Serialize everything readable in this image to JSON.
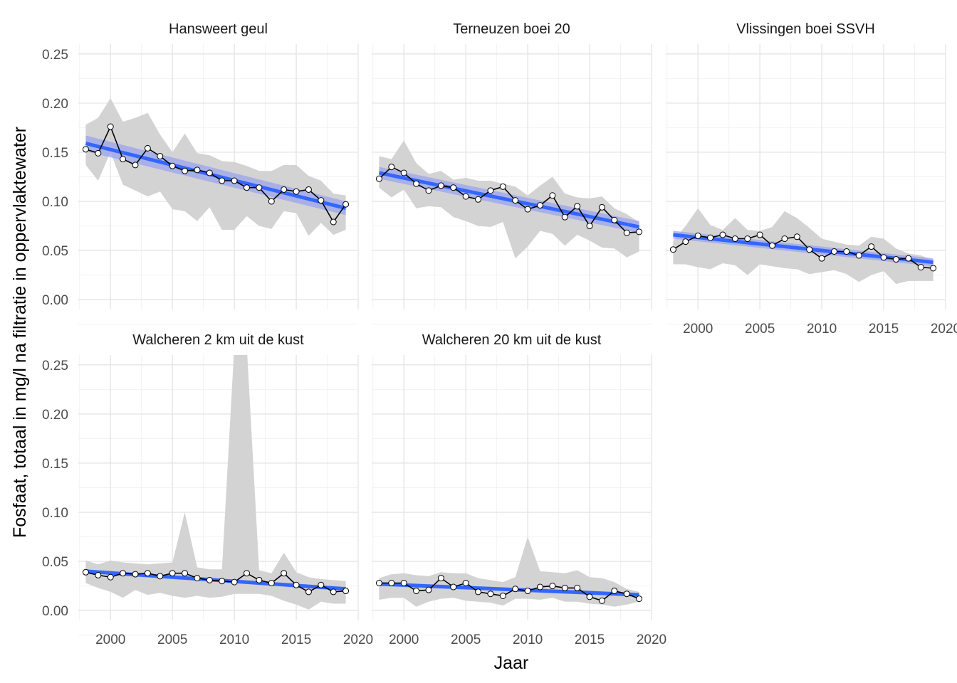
{
  "chart_data": {
    "type": "line",
    "xlabel": "Jaar",
    "ylabel": "Fosfaat, totaal in mg/l na filtratie in oppervlaktewater",
    "xlim": [
      1997.4,
      2020
    ],
    "ylim": [
      -0.01,
      0.26
    ],
    "x_ticks": [
      2000,
      2005,
      2010,
      2015,
      2020
    ],
    "y_ticks": [
      0.0,
      0.05,
      0.1,
      0.15,
      0.2,
      0.25
    ],
    "y_tick_labels": [
      "0.00",
      "0.05",
      "0.10",
      "0.15",
      "0.20",
      "0.25"
    ],
    "grid": true,
    "x_tick_shown_on": [
      "Vlissingen boei SSVH",
      "Walcheren 2 km uit de kust",
      "Walcheren 20 km uit de kust"
    ],
    "y_tick_shown_on": [
      "Hansweert geul",
      "Walcheren 2 km uit de kust"
    ],
    "colors": {
      "trend": "#3366ff",
      "ribbon": "#d3d3d3",
      "trend_band": "#9aa4ee",
      "line": "#000000",
      "point_fill": "#ffffff"
    },
    "years": [
      1998,
      1999,
      2000,
      2001,
      2002,
      2003,
      2004,
      2005,
      2006,
      2007,
      2008,
      2009,
      2010,
      2011,
      2012,
      2013,
      2014,
      2015,
      2016,
      2017,
      2018,
      2019
    ],
    "panels": [
      {
        "name": "Hansweert geul",
        "values": [
          0.153,
          0.149,
          0.176,
          0.143,
          0.137,
          0.154,
          0.146,
          0.136,
          0.131,
          0.132,
          0.129,
          0.121,
          0.121,
          0.114,
          0.114,
          0.1,
          0.112,
          0.11,
          0.112,
          0.101,
          0.079,
          0.097
        ],
        "ribbon_min": [
          0.137,
          0.121,
          0.15,
          0.117,
          0.111,
          0.105,
          0.11,
          0.092,
          0.09,
          0.08,
          0.094,
          0.071,
          0.071,
          0.085,
          0.075,
          0.072,
          0.09,
          0.088,
          0.065,
          0.078,
          0.066,
          0.071
        ],
        "ribbon_max": [
          0.178,
          0.185,
          0.205,
          0.181,
          0.185,
          0.19,
          0.168,
          0.15,
          0.169,
          0.149,
          0.147,
          0.141,
          0.14,
          0.136,
          0.131,
          0.131,
          0.137,
          0.137,
          0.126,
          0.121,
          0.108,
          0.106
        ],
        "trend": [
          0.159,
          0.093
        ],
        "trend_se": [
          0.008,
          0.007
        ]
      },
      {
        "name": "Terneuzen boei 20",
        "values": [
          0.123,
          0.135,
          0.129,
          0.118,
          0.111,
          0.116,
          0.114,
          0.105,
          0.102,
          0.111,
          0.115,
          0.101,
          0.092,
          0.096,
          0.106,
          0.084,
          0.095,
          0.075,
          0.094,
          0.081,
          0.068,
          0.069
        ],
        "ribbon_min": [
          0.114,
          0.104,
          0.112,
          0.093,
          0.095,
          0.094,
          0.084,
          0.08,
          0.075,
          0.074,
          0.079,
          0.042,
          0.054,
          0.07,
          0.067,
          0.055,
          0.066,
          0.06,
          0.053,
          0.052,
          0.043,
          0.049
        ],
        "ribbon_max": [
          0.146,
          0.143,
          0.162,
          0.139,
          0.128,
          0.131,
          0.122,
          0.124,
          0.121,
          0.121,
          0.118,
          0.115,
          0.106,
          0.116,
          0.125,
          0.108,
          0.104,
          0.103,
          0.105,
          0.093,
          0.087,
          0.079
        ],
        "trend": [
          0.129,
          0.074
        ],
        "trend_se": [
          0.006,
          0.006
        ]
      },
      {
        "name": "Vlissingen boei SSVH",
        "values": [
          0.051,
          0.059,
          0.065,
          0.063,
          0.066,
          0.062,
          0.062,
          0.066,
          0.055,
          0.062,
          0.064,
          0.051,
          0.042,
          0.049,
          0.049,
          0.045,
          0.054,
          0.043,
          0.041,
          0.042,
          0.033,
          0.032
        ],
        "ribbon_min": [
          0.036,
          0.036,
          0.033,
          0.031,
          0.037,
          0.035,
          0.025,
          0.036,
          0.034,
          0.032,
          0.031,
          0.026,
          0.028,
          0.03,
          0.026,
          0.018,
          0.025,
          0.029,
          0.016,
          0.019,
          0.019,
          0.019
        ],
        "ribbon_max": [
          0.06,
          0.075,
          0.093,
          0.076,
          0.071,
          0.083,
          0.071,
          0.07,
          0.074,
          0.09,
          0.083,
          0.073,
          0.062,
          0.059,
          0.056,
          0.055,
          0.064,
          0.062,
          0.052,
          0.047,
          0.045,
          0.04
        ],
        "trend": [
          0.066,
          0.038
        ],
        "trend_se": [
          0.004,
          0.004
        ]
      },
      {
        "name": "Walcheren 2 km uit de kust",
        "values": [
          0.039,
          0.036,
          0.034,
          0.038,
          0.037,
          0.038,
          0.035,
          0.038,
          0.038,
          0.033,
          0.031,
          0.03,
          0.029,
          0.038,
          0.031,
          0.028,
          0.038,
          0.026,
          0.019,
          0.026,
          0.019,
          0.02
        ],
        "ribbon_min": [
          0.028,
          0.023,
          0.019,
          0.013,
          0.021,
          0.016,
          0.018,
          0.015,
          0.013,
          0.015,
          0.013,
          0.014,
          0.017,
          0.017,
          0.017,
          0.015,
          0.01,
          0.006,
          0.001,
          0.009,
          0.007,
          0.007
        ],
        "ribbon_max": [
          0.051,
          0.047,
          0.051,
          0.049,
          0.048,
          0.047,
          0.048,
          0.049,
          0.1,
          0.044,
          0.042,
          0.042,
          0.27,
          0.27,
          0.041,
          0.038,
          0.059,
          0.039,
          0.034,
          0.032,
          0.031,
          0.03
        ],
        "trend": [
          0.04,
          0.022
        ],
        "trend_se": [
          0.002,
          0.002
        ]
      },
      {
        "name": "Walcheren 20 km uit de kust",
        "values": [
          0.028,
          0.028,
          0.028,
          0.02,
          0.021,
          0.033,
          0.024,
          0.028,
          0.019,
          0.017,
          0.015,
          0.022,
          0.02,
          0.024,
          0.025,
          0.023,
          0.023,
          0.014,
          0.01,
          0.02,
          0.017,
          0.012
        ],
        "ribbon_min": [
          0.011,
          0.013,
          0.013,
          0.004,
          0.009,
          0.012,
          0.013,
          0.01,
          0.009,
          0.008,
          0.005,
          0.012,
          0.012,
          0.011,
          0.013,
          0.009,
          0.009,
          0.007,
          0.006,
          0.004,
          0.006,
          0.009
        ],
        "ribbon_max": [
          0.033,
          0.037,
          0.038,
          0.036,
          0.035,
          0.039,
          0.038,
          0.038,
          0.033,
          0.031,
          0.029,
          0.034,
          0.075,
          0.04,
          0.039,
          0.038,
          0.041,
          0.034,
          0.033,
          0.029,
          0.022,
          0.019
        ],
        "trend": [
          0.027,
          0.016
        ],
        "trend_se": [
          0.002,
          0.002
        ]
      }
    ]
  }
}
